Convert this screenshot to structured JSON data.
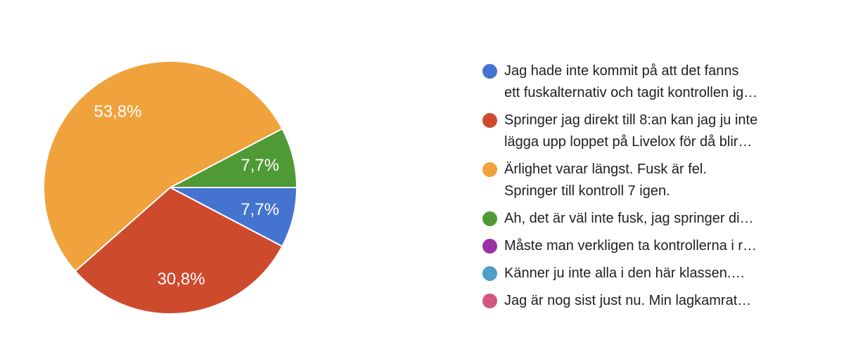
{
  "chart_data": {
    "type": "pie",
    "title": "",
    "legend_position": "right",
    "background_color": "#FFFFFF",
    "percent_label_color": "#FFFFFF",
    "legend_text_color": "#212121",
    "slice_border_color": "#FFFFFF",
    "start_angle": "3-oclock-clockwise",
    "slices": [
      {
        "legend": "Jag hade inte kommit på att det fanns\nett fuskalternativ och tagit kontrollen ig…",
        "percent": 7.7,
        "percent_label": "7,7%",
        "color": "#4573D0"
      },
      {
        "legend": "Springer jag direkt till 8:an kan jag ju inte\nlägga upp loppet på Livelox för då blir…",
        "percent": 30.8,
        "percent_label": "30,8%",
        "color": "#CE4A2D"
      },
      {
        "legend": "Ärlighet varar längst. Fusk är fel.\nSpringer till kontroll 7 igen.",
        "percent": 53.8,
        "percent_label": "53,8%",
        "color": "#F0A23C"
      },
      {
        "legend": "Ah, det är väl inte fusk, jag springer di…",
        "percent": 7.7,
        "percent_label": "7,7%",
        "color": "#4F9A35"
      },
      {
        "legend": "Måste man verkligen ta kontrollerna i r…",
        "percent": 0,
        "percent_label": "",
        "color": "#9C2FA5"
      },
      {
        "legend": "Känner ju inte alla i den här klassen.…",
        "percent": 0,
        "percent_label": "",
        "color": "#4D9FC6"
      },
      {
        "legend": "Jag är nog sist just nu. Min lagkamrat…",
        "percent": 0,
        "percent_label": "",
        "color": "#D2567E"
      }
    ]
  }
}
